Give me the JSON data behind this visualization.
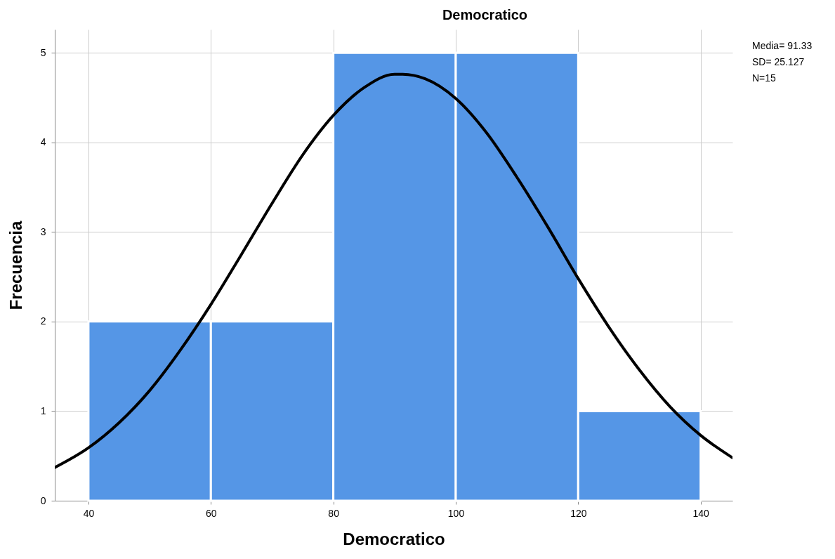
{
  "chart_data": {
    "type": "histogram",
    "title": "Democratico",
    "xlabel": "Democratico",
    "ylabel": "Frecuencia",
    "bins": [
      40,
      60,
      80,
      100,
      120,
      140
    ],
    "series": [
      {
        "color": "#5596e6",
        "values": [
          2,
          2,
          5,
          5,
          1
        ]
      },
      {
        "type": "line",
        "color": "#000000",
        "marker": "none",
        "line_style": "solid",
        "x": [
          34.5,
          40,
          45,
          50,
          55,
          60,
          65,
          70,
          75,
          80,
          85,
          90,
          91.33,
          95,
          100,
          105,
          110,
          115,
          120,
          125,
          130,
          135,
          140,
          145.2
        ],
        "values": [
          0.37,
          0.59,
          0.87,
          1.23,
          1.68,
          2.19,
          2.75,
          3.32,
          3.86,
          4.3,
          4.61,
          4.76,
          4.76,
          4.71,
          4.49,
          4.11,
          3.61,
          3.06,
          2.48,
          1.94,
          1.46,
          1.05,
          0.73,
          0.48
        ]
      }
    ],
    "xlim": [
      34.5,
      145.2
    ],
    "xticks": [
      40,
      60,
      80,
      100,
      120,
      140
    ],
    "ylim": [
      0,
      5.26
    ],
    "yticks": [
      0,
      1,
      2,
      3,
      4,
      5
    ],
    "grid": true,
    "annotations": [
      "Media= 91.33",
      "SD= 25.127",
      "N=15"
    ]
  }
}
